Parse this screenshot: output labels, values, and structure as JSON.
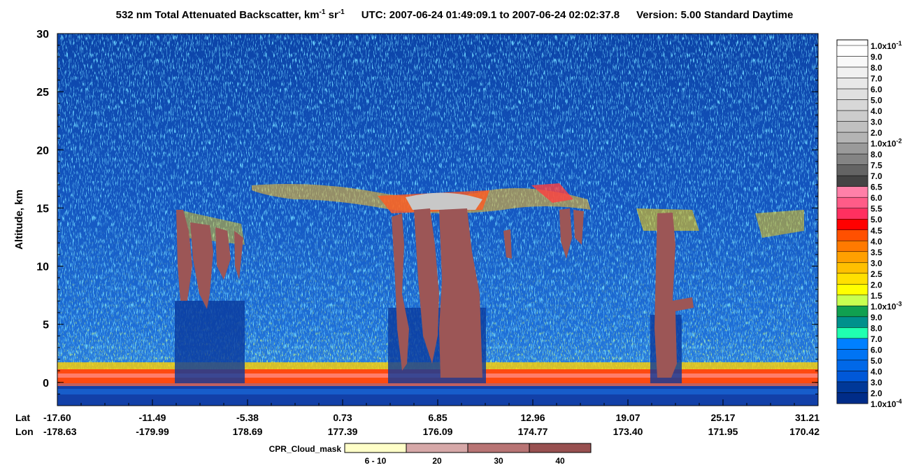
{
  "chart_data": {
    "type": "heatmap",
    "title_parts": [
      "532 nm Total Attenuated Backscatter, km",
      "-1",
      " sr",
      "-1"
    ],
    "subtitle": "UTC:  2007-06-24 01:49:09.1  to  2007-06-24 02:02:37.8",
    "version": "Version: 5.00  Standard  Daytime",
    "ylabel": "Altitude, km",
    "ylim": [
      -2,
      30
    ],
    "yticks": [
      0,
      5,
      10,
      15,
      20,
      25,
      30
    ],
    "x_row_labels": [
      "Lat",
      "Lon"
    ],
    "x_ticks": [
      {
        "lat": "-17.60",
        "lon": "-178.63"
      },
      {
        "lat": "-11.49",
        "lon": "-179.99"
      },
      {
        "lat": "-5.38",
        "lon": "178.69"
      },
      {
        "lat": "0.73",
        "lon": "177.39"
      },
      {
        "lat": "6.85",
        "lon": "176.09"
      },
      {
        "lat": "12.96",
        "lon": "174.77"
      },
      {
        "lat": "19.07",
        "lon": "173.40"
      },
      {
        "lat": "25.17",
        "lon": "171.95"
      },
      {
        "lat": "31.21",
        "lon": "170.42"
      }
    ],
    "colorbar_labels": [
      {
        "text": "1.0x10",
        "sup": "-1"
      },
      "9.0",
      "8.0",
      "7.0",
      "6.0",
      "5.0",
      "4.0",
      "3.0",
      "2.0",
      {
        "text": "1.0x10",
        "sup": "-2"
      },
      "8.0",
      "7.5",
      "7.0",
      "6.5",
      "6.0",
      "5.5",
      "5.0",
      "4.5",
      "4.0",
      "3.5",
      "3.0",
      "2.5",
      "2.0",
      "1.5",
      {
        "text": "1.0x10",
        "sup": "-3"
      },
      "9.0",
      "8.0",
      "7.0",
      "6.0",
      "5.0",
      "4.0",
      "3.0",
      "2.0",
      {
        "text": "1.0x10",
        "sup": "-4"
      }
    ],
    "colorbar_colors": [
      "#ffffff",
      "#f8f8f8",
      "#f0f0f0",
      "#e8e8e8",
      "#e0e0e0",
      "#d8d8d8",
      "#cccccc",
      "#c0c0c0",
      "#b4b4b4",
      "#9a9a9a",
      "#848484",
      "#646464",
      "#444444",
      "#ff80a8",
      "#ff5c88",
      "#ff3060",
      "#ff0000",
      "#ff5000",
      "#ff7a00",
      "#ffa000",
      "#ffc000",
      "#ffe000",
      "#ffff00",
      "#c8ff50",
      "#10a050",
      "#00908c",
      "#20ffb0",
      "#0080ff",
      "#0074f4",
      "#0068e8",
      "#0058d8",
      "#003898",
      "#002c88"
    ],
    "cpr_label": "CPR_Cloud_mask",
    "cpr_bins": [
      "6 - 10",
      "20",
      "30",
      "40"
    ],
    "cpr_colors": [
      "#ffffc8",
      "#d6a8a8",
      "#b87474",
      "#985050"
    ]
  }
}
